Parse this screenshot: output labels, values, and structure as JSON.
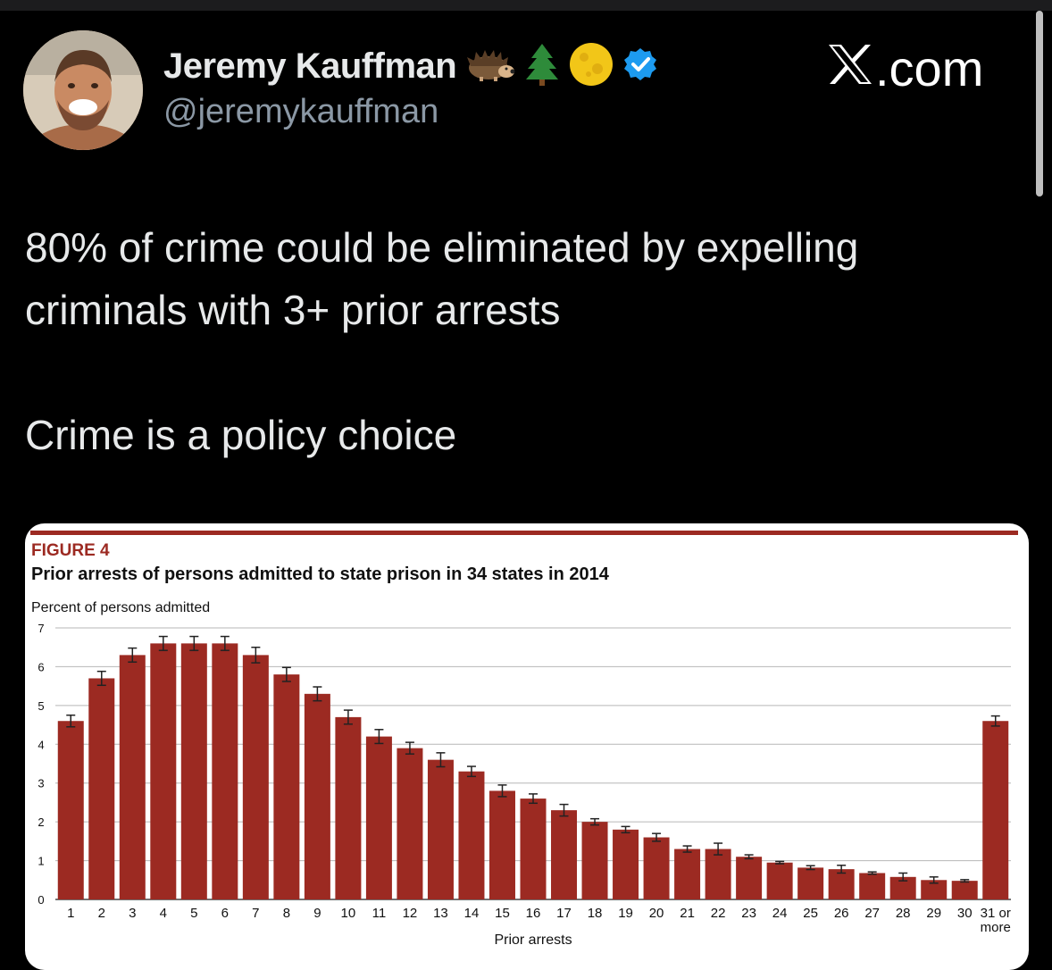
{
  "tweet": {
    "display_name": "Jeremy Kauffman",
    "handle": "@jeremykauffman",
    "source": ".com",
    "text_line1": "80% of crime could be eliminated by expelling",
    "text_line2": "criminals with 3+ prior arrests",
    "text_line3": "Crime is a policy choice",
    "name_emojis": [
      "hedgehog-icon",
      "evergreen-tree-icon",
      "full-moon-icon",
      "verified-badge-icon"
    ],
    "colors": {
      "background": "#000000",
      "verified": "#1d9bf0",
      "handle": "#8b98a5"
    }
  },
  "figure": {
    "label": "FIGURE 4",
    "title": "Prior arrests of persons admitted to state prison in 34 states in 2014"
  },
  "chart_data": {
    "type": "bar",
    "title": "Prior arrests of persons admitted to state prison in 34 states in 2014",
    "ylabel": "Percent of persons admitted",
    "xlabel": "Prior arrests",
    "ylim": [
      0,
      7
    ],
    "yticks": [
      "0",
      "1",
      "2",
      "3",
      "4",
      "5",
      "6",
      "7"
    ],
    "grid": true,
    "bar_color": "#9c2a22",
    "categories": [
      "1",
      "2",
      "3",
      "4",
      "5",
      "6",
      "7",
      "8",
      "9",
      "10",
      "11",
      "12",
      "13",
      "14",
      "15",
      "16",
      "17",
      "18",
      "19",
      "20",
      "21",
      "22",
      "23",
      "24",
      "25",
      "26",
      "27",
      "28",
      "29",
      "30",
      "31 or more"
    ],
    "values": [
      4.6,
      5.7,
      6.3,
      6.6,
      6.6,
      6.6,
      6.3,
      5.8,
      5.3,
      4.7,
      4.2,
      3.9,
      3.6,
      3.3,
      2.8,
      2.6,
      2.3,
      2.0,
      1.8,
      1.6,
      1.3,
      1.3,
      1.1,
      0.95,
      0.82,
      0.78,
      0.68,
      0.58,
      0.5,
      0.48,
      4.6
    ],
    "error": [
      0.15,
      0.18,
      0.18,
      0.18,
      0.18,
      0.18,
      0.2,
      0.18,
      0.18,
      0.18,
      0.18,
      0.15,
      0.18,
      0.13,
      0.15,
      0.12,
      0.15,
      0.08,
      0.08,
      0.1,
      0.08,
      0.15,
      0.05,
      0.03,
      0.05,
      0.1,
      0.03,
      0.1,
      0.08,
      0.03,
      0.13
    ]
  }
}
